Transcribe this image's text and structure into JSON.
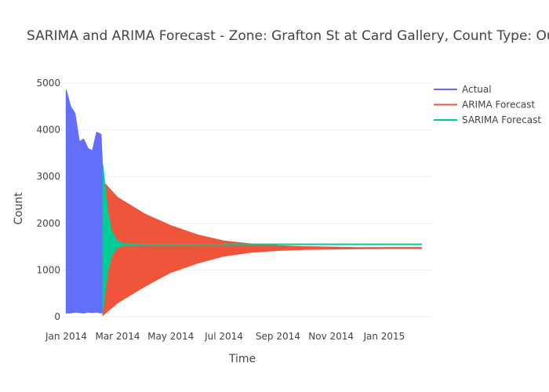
{
  "chart_data": {
    "type": "line",
    "title": "SARIMA and ARIMA Forecast - Zone: Grafton St at Card Gallery, Count Type: OutCount",
    "xlabel": "Time",
    "ylabel": "Count",
    "x_range": [
      "2013-12-28",
      "2015-02-25"
    ],
    "ylim": [
      -150,
      5100
    ],
    "x_ticks": [
      {
        "label": "Jan 2014",
        "date": "2014-01-01"
      },
      {
        "label": "Mar 2014",
        "date": "2014-03-01"
      },
      {
        "label": "May 2014",
        "date": "2014-05-01"
      },
      {
        "label": "Jul 2014",
        "date": "2014-07-01"
      },
      {
        "label": "Sep 2014",
        "date": "2014-09-01"
      },
      {
        "label": "Nov 2014",
        "date": "2014-11-01"
      },
      {
        "label": "Jan 2015",
        "date": "2015-01-01"
      }
    ],
    "y_ticks": [
      {
        "label": "0",
        "value": 0
      },
      {
        "label": "1000",
        "value": 1000
      },
      {
        "label": "2000",
        "value": 2000
      },
      {
        "label": "3000",
        "value": 3000
      },
      {
        "label": "4000",
        "value": 4000
      },
      {
        "label": "5000",
        "value": 5000
      }
    ],
    "grid": true,
    "legend_position": "top-right",
    "series": [
      {
        "name": "Actual",
        "color": "#636efa",
        "x": [
          "2014-01-01",
          "2014-01-06",
          "2014-01-11",
          "2014-01-16",
          "2014-01-21",
          "2014-01-26",
          "2014-01-31",
          "2014-02-05",
          "2014-02-10",
          "2014-02-12"
        ],
        "upper": [
          4850,
          4500,
          4350,
          3750,
          3800,
          3600,
          3550,
          3950,
          3900,
          3000
        ],
        "lower": [
          80,
          80,
          100,
          90,
          80,
          100,
          90,
          100,
          80,
          100
        ]
      },
      {
        "name": "ARIMA Forecast",
        "color": "#ef553b",
        "x": [
          "2014-02-12",
          "2014-03-01",
          "2014-04-01",
          "2014-05-01",
          "2014-06-01",
          "2014-07-01",
          "2014-08-01",
          "2014-09-01",
          "2014-10-01",
          "2014-11-01",
          "2014-12-01",
          "2015-01-01",
          "2015-02-13"
        ],
        "upper": [
          2900,
          2550,
          2200,
          1950,
          1750,
          1620,
          1560,
          1520,
          1500,
          1490,
          1480,
          1480,
          1480
        ],
        "lower": [
          30,
          300,
          650,
          950,
          1150,
          1300,
          1380,
          1420,
          1440,
          1450,
          1455,
          1460,
          1460
        ]
      },
      {
        "name": "SARIMA Forecast",
        "color": "#00cc96",
        "x": [
          "2014-02-12",
          "2014-02-15",
          "2014-02-18",
          "2014-02-22",
          "2014-02-26",
          "2014-03-01",
          "2014-03-05",
          "2014-03-10",
          "2014-04-01",
          "2014-07-01",
          "2014-10-01",
          "2015-01-01",
          "2015-02-13"
        ],
        "upper": [
          3250,
          2700,
          2200,
          1850,
          1700,
          1620,
          1580,
          1560,
          1550,
          1550,
          1550,
          1550,
          1550
        ],
        "lower": [
          100,
          600,
          1000,
          1300,
          1420,
          1480,
          1510,
          1530,
          1540,
          1545,
          1548,
          1550,
          1550
        ]
      }
    ]
  }
}
